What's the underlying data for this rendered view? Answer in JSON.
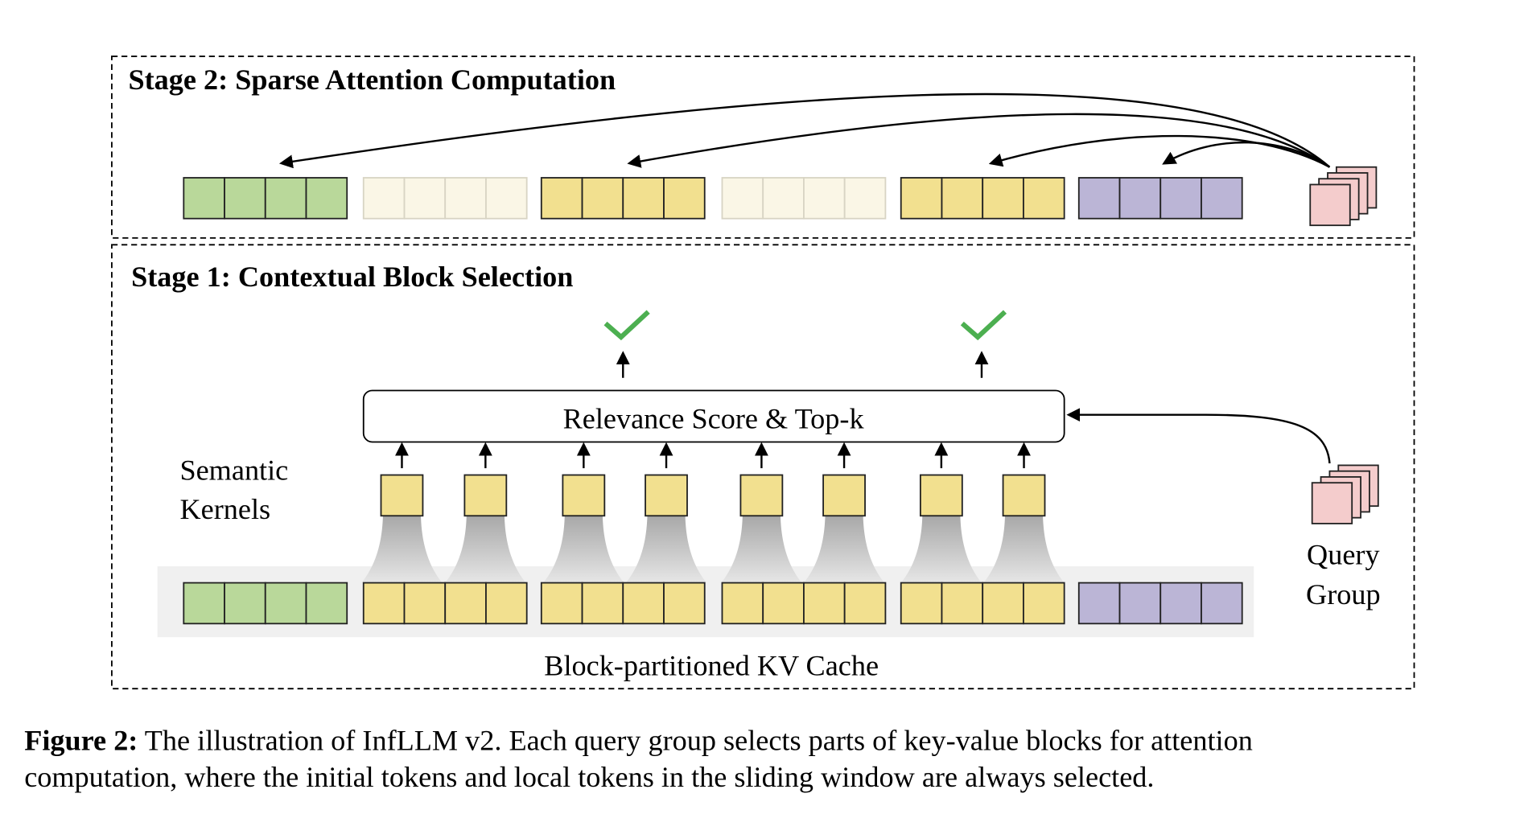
{
  "stage2": {
    "title": "Stage 2: Sparse Attention Computation"
  },
  "stage1": {
    "title": "Stage 1: Contextual Block Selection",
    "relevance_label": "Relevance Score & Top-k",
    "kernels_label_line1": "Semantic",
    "kernels_label_line2": "Kernels",
    "query_label_line1": "Query",
    "query_label_line2": "Group",
    "kv_cache_label": "Block-partitioned KV Cache"
  },
  "caption": {
    "prefix": "Figure 2:",
    "line1": " The illustration of InfLLM v2. Each query group selects parts of key-value blocks for attention",
    "line2": "computation, where the initial tokens and local tokens in the sliding window are always selected."
  },
  "colors": {
    "initial": "#b9d89a",
    "selected": "#f2e08f",
    "unselected": "#faf6e6",
    "local": "#bbb5d6",
    "query": "#f4cccc",
    "check": "#4caf50",
    "band": "#f0f0f0"
  },
  "stage2_blocks": [
    "initial",
    "unselected",
    "selected",
    "unselected",
    "selected",
    "local"
  ],
  "stage1_blocks": [
    "initial",
    "selected",
    "selected",
    "selected",
    "selected",
    "local"
  ]
}
